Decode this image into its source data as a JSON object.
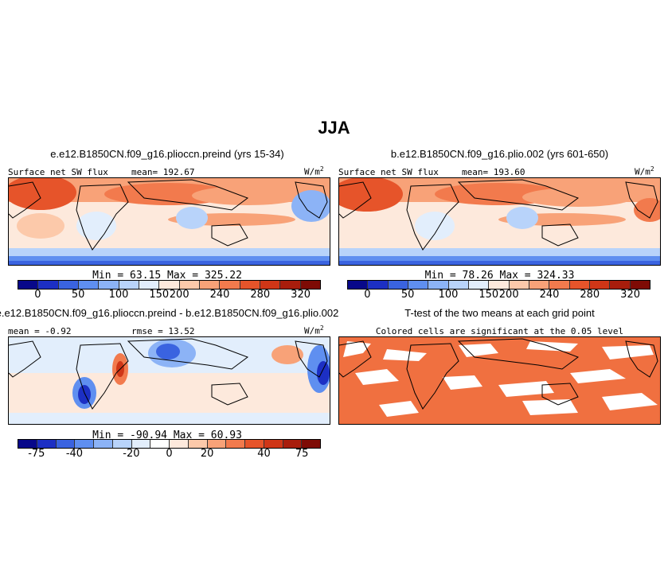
{
  "title": "JJA",
  "panels": [
    {
      "title": "e.e12.B1850CN.f09_g16.plioccn.preind (yrs 15-34)",
      "field_label": "Surface net SW flux",
      "stat_left": "mean= 192.67",
      "units": "W/m",
      "units_sup": "2",
      "minmax": "Min =  63.15 Max = 325.22",
      "colorbar_ticks": [
        "0",
        "50",
        "100",
        "150",
        "200",
        "240",
        "280",
        "320"
      ]
    },
    {
      "title": "b.e12.B1850CN.f09_g16.plio.002 (yrs 601-650)",
      "field_label": "Surface net SW flux",
      "stat_left": "mean= 193.60",
      "units": "W/m",
      "units_sup": "2",
      "minmax": "Min =  78.26 Max = 324.33",
      "colorbar_ticks": [
        "0",
        "50",
        "100",
        "150",
        "200",
        "240",
        "280",
        "320"
      ]
    },
    {
      "title": "e.e12.B1850CN.f09_g16.plioccn.preind - b.e12.B1850CN.f09_g16.plio.002",
      "stat_left": "mean =  -0.92",
      "stat_right": "rmse =  13.52",
      "units": "W/m",
      "units_sup": "2",
      "minmax": "Min = -90.94 Max =  60.93",
      "colorbar_ticks": [
        "-75",
        "-40",
        "-20",
        "0",
        "20",
        "40",
        "75"
      ]
    },
    {
      "title": "T-test of the two means at each grid point",
      "subtitle": "Colored cells are significant at the 0.05 level"
    }
  ],
  "colors": {
    "abs_scale": [
      "#08088a",
      "#1c2fc4",
      "#3a63e0",
      "#5f8ff0",
      "#8cb3f6",
      "#b8d3fa",
      "#e2eefc",
      "#fde9dc",
      "#fcc9aa",
      "#f8a278",
      "#f27a4d",
      "#e6542a",
      "#cf3617",
      "#a81d0c",
      "#7e0b05"
    ],
    "diff_scale": [
      "#08088a",
      "#1c2fc4",
      "#3a63e0",
      "#5f8ff0",
      "#8cb3f6",
      "#b8d3fa",
      "#e2eefc",
      "#ffffff",
      "#fde9dc",
      "#fcc9aa",
      "#f8a278",
      "#f27a4d",
      "#e6542a",
      "#cf3617",
      "#a81d0c",
      "#7e0b05"
    ],
    "significant": "#f07040"
  }
}
